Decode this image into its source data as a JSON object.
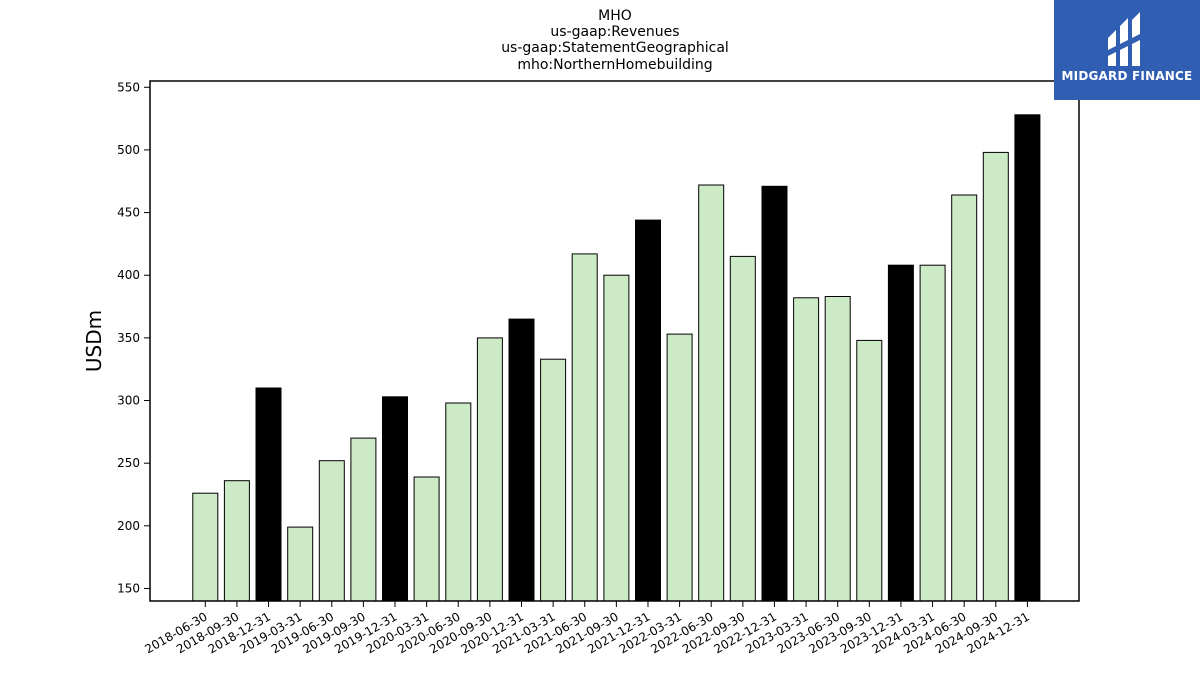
{
  "logo": {
    "text": "MIDGARD FINANCE",
    "icon": "midgard-logo-icon",
    "background": "#2f5eb3"
  },
  "chart_data": {
    "type": "bar",
    "title_lines": [
      "MHO",
      "us-gaap:Revenues",
      "us-gaap:StatementGeographical",
      "mho:NorthernHomebuilding"
    ],
    "xlabel": "",
    "ylabel": "USDm",
    "ylim": [
      140,
      555
    ],
    "yticks": [
      150,
      200,
      250,
      300,
      350,
      400,
      450,
      500,
      550
    ],
    "grid": false,
    "legend": "none",
    "colors": {
      "quarter": "#cdeac6",
      "year_end": "#000000",
      "edge": "#000000"
    },
    "categories": [
      "2018-06-30",
      "2018-09-30",
      "2018-12-31",
      "2019-03-31",
      "2019-06-30",
      "2019-09-30",
      "2019-12-31",
      "2020-03-31",
      "2020-06-30",
      "2020-09-30",
      "2020-12-31",
      "2021-03-31",
      "2021-06-30",
      "2021-09-30",
      "2021-12-31",
      "2022-03-31",
      "2022-06-30",
      "2022-09-30",
      "2022-12-31",
      "2023-03-31",
      "2023-06-30",
      "2023-09-30",
      "2023-12-31",
      "2024-03-31",
      "2024-06-30",
      "2024-09-30",
      "2024-12-31"
    ],
    "values": [
      226,
      236,
      310,
      199,
      252,
      270,
      303,
      239,
      298,
      350,
      365,
      333,
      417,
      400,
      444,
      353,
      472,
      415,
      471,
      382,
      383,
      348,
      408,
      408,
      464,
      498,
      528
    ],
    "year_end": [
      false,
      false,
      true,
      false,
      false,
      false,
      true,
      false,
      false,
      false,
      true,
      false,
      false,
      false,
      true,
      false,
      false,
      false,
      true,
      false,
      false,
      false,
      true,
      false,
      false,
      false,
      true
    ]
  }
}
